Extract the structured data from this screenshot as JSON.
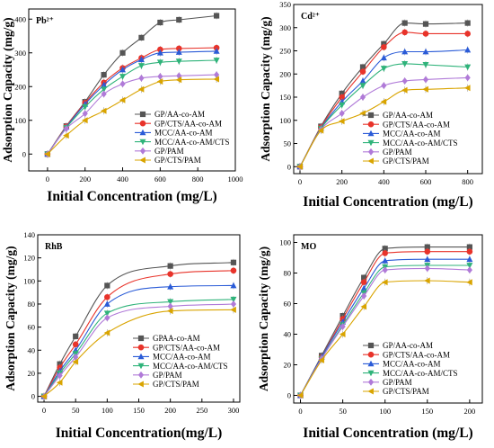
{
  "chart_data": [
    {
      "type": "line",
      "panel_label": "Pb²⁺",
      "xlabel": "Initial Concentration (mg/L)",
      "ylabel": "Adsorption Capacity (mg/g)",
      "xlim": [
        -100,
        1000
      ],
      "ylim": [
        -50,
        430
      ],
      "xticks": [
        0,
        200,
        400,
        600,
        800,
        1000
      ],
      "yticks": [
        0,
        100,
        200,
        300,
        400
      ],
      "grid": false,
      "legend_position": "center-right",
      "x": [
        0,
        100,
        200,
        300,
        400,
        500,
        600,
        700,
        900
      ],
      "series": [
        {
          "name": "GP/AA-co-AM",
          "color": "#555555",
          "marker": "square",
          "values": [
            0,
            83,
            155,
            235,
            300,
            345,
            390,
            398,
            410
          ]
        },
        {
          "name": "GP/CTS/AA-co-AM",
          "color": "#e8332a",
          "marker": "circle",
          "values": [
            0,
            82,
            152,
            212,
            255,
            285,
            310,
            313,
            315
          ]
        },
        {
          "name": "MCC/AA-co-AM",
          "color": "#2a5bd7",
          "marker": "triangle-up",
          "values": [
            0,
            80,
            148,
            205,
            250,
            280,
            300,
            302,
            305
          ]
        },
        {
          "name": "MCC/AA-co-AM/CTS",
          "color": "#2fb37a",
          "marker": "triangle-down",
          "values": [
            0,
            78,
            140,
            192,
            230,
            262,
            272,
            275,
            278
          ]
        },
        {
          "name": "GP/PAM",
          "color": "#b07ad8",
          "marker": "diamond",
          "values": [
            0,
            75,
            120,
            178,
            208,
            225,
            230,
            232,
            235
          ]
        },
        {
          "name": "GP/CTS/PAM",
          "color": "#d9a400",
          "marker": "triangle-left",
          "values": [
            0,
            55,
            100,
            128,
            160,
            192,
            215,
            220,
            222
          ]
        }
      ]
    },
    {
      "type": "line",
      "panel_label": "Cd²⁺",
      "xlabel": "Initial Concentration (mg/L)",
      "ylabel": "Adsorption Capacity (mg/g)",
      "xlim": [
        -30,
        870
      ],
      "ylim": [
        -15,
        350
      ],
      "xticks": [
        0,
        200,
        400,
        600,
        800
      ],
      "yticks": [
        0,
        50,
        100,
        150,
        200,
        250,
        300,
        350
      ],
      "grid": false,
      "legend_position": "bottom-right",
      "x": [
        0,
        100,
        200,
        300,
        400,
        500,
        600,
        800
      ],
      "series": [
        {
          "name": "GP/AA-co-AM",
          "color": "#555555",
          "marker": "square",
          "values": [
            0,
            87,
            158,
            215,
            265,
            310,
            308,
            310
          ]
        },
        {
          "name": "GP/CTS/AA-co-AM",
          "color": "#e8332a",
          "marker": "circle",
          "values": [
            0,
            85,
            150,
            205,
            258,
            290,
            287,
            287
          ]
        },
        {
          "name": "MCC/AA-co-AM",
          "color": "#2a5bd7",
          "marker": "triangle-up",
          "values": [
            0,
            83,
            140,
            185,
            235,
            248,
            248,
            252
          ]
        },
        {
          "name": "MCC/AA-co-AM/CTS",
          "color": "#2fb37a",
          "marker": "triangle-down",
          "values": [
            0,
            82,
            133,
            175,
            212,
            222,
            220,
            215
          ]
        },
        {
          "name": "GP/PAM",
          "color": "#b07ad8",
          "marker": "diamond",
          "values": [
            0,
            80,
            115,
            150,
            175,
            185,
            188,
            192
          ]
        },
        {
          "name": "GP/CTS/PAM",
          "color": "#d9a400",
          "marker": "triangle-left",
          "values": [
            0,
            78,
            98,
            115,
            140,
            165,
            167,
            170
          ]
        }
      ]
    },
    {
      "type": "line",
      "panel_label": "RhB",
      "xlabel": "Initial Concentration(mg/L)",
      "ylabel": "Adsorption Capacity (mg/g)",
      "xlim": [
        -10,
        310
      ],
      "ylim": [
        -5,
        140
      ],
      "xticks": [
        0,
        50,
        100,
        150,
        200,
        250,
        300
      ],
      "yticks": [
        0,
        20,
        40,
        60,
        80,
        100,
        120,
        140
      ],
      "grid": false,
      "legend_position": "bottom-right",
      "x": [
        0,
        25,
        50,
        100,
        200,
        300
      ],
      "series": [
        {
          "name": "GPAA-co-AM",
          "color": "#555555",
          "marker": "square",
          "values": [
            0,
            28,
            52,
            96,
            113,
            116
          ]
        },
        {
          "name": "GP/CTS/AA-co-AM",
          "color": "#e8332a",
          "marker": "circle",
          "values": [
            0,
            25,
            45,
            86,
            106,
            109
          ]
        },
        {
          "name": "MCC/AA-co-AM",
          "color": "#2a5bd7",
          "marker": "triangle-up",
          "values": [
            0,
            22,
            40,
            80,
            95,
            96
          ]
        },
        {
          "name": "MCC/AA-co-AM/CTS",
          "color": "#2fb37a",
          "marker": "triangle-down",
          "values": [
            0,
            20,
            37,
            72,
            82,
            84
          ]
        },
        {
          "name": "GP/PAM",
          "color": "#b07ad8",
          "marker": "diamond",
          "values": [
            0,
            18,
            34,
            68,
            78,
            80
          ]
        },
        {
          "name": "GP/CTS/PAM",
          "color": "#d9a400",
          "marker": "triangle-left",
          "values": [
            0,
            12,
            30,
            55,
            74,
            75
          ]
        }
      ]
    },
    {
      "type": "line",
      "panel_label": "MO",
      "xlabel": "Initial Concentration (mg/L)",
      "ylabel": "Adsorption Capacity (mg/g)",
      "xlim": [
        -8,
        215
      ],
      "ylim": [
        -5,
        105
      ],
      "xticks": [
        0,
        50,
        100,
        150,
        200
      ],
      "yticks": [
        0,
        20,
        40,
        60,
        80,
        100
      ],
      "grid": false,
      "legend_position": "bottom-right",
      "x": [
        0,
        25,
        50,
        75,
        100,
        150,
        200
      ],
      "series": [
        {
          "name": "GP/AA-co-AM",
          "color": "#555555",
          "marker": "square",
          "values": [
            0,
            26,
            52,
            77,
            96,
            97,
            97
          ]
        },
        {
          "name": "GP/CTS/AA-co-AM",
          "color": "#e8332a",
          "marker": "circle",
          "values": [
            0,
            25,
            50,
            74,
            93,
            94,
            94
          ]
        },
        {
          "name": "MCC/AA-co-AM",
          "color": "#2a5bd7",
          "marker": "triangle-up",
          "values": [
            0,
            25,
            48,
            70,
            88,
            89,
            89
          ]
        },
        {
          "name": "MCC/AA-co-AM/CTS",
          "color": "#2fb37a",
          "marker": "triangle-down",
          "values": [
            0,
            24,
            46,
            67,
            84,
            85,
            85
          ]
        },
        {
          "name": "GP/PAM",
          "color": "#b07ad8",
          "marker": "diamond",
          "values": [
            0,
            24,
            45,
            65,
            82,
            83,
            82
          ]
        },
        {
          "name": "GP/CTS/PAM",
          "color": "#d9a400",
          "marker": "triangle-left",
          "values": [
            0,
            23,
            40,
            58,
            74,
            75,
            74
          ]
        }
      ]
    }
  ]
}
